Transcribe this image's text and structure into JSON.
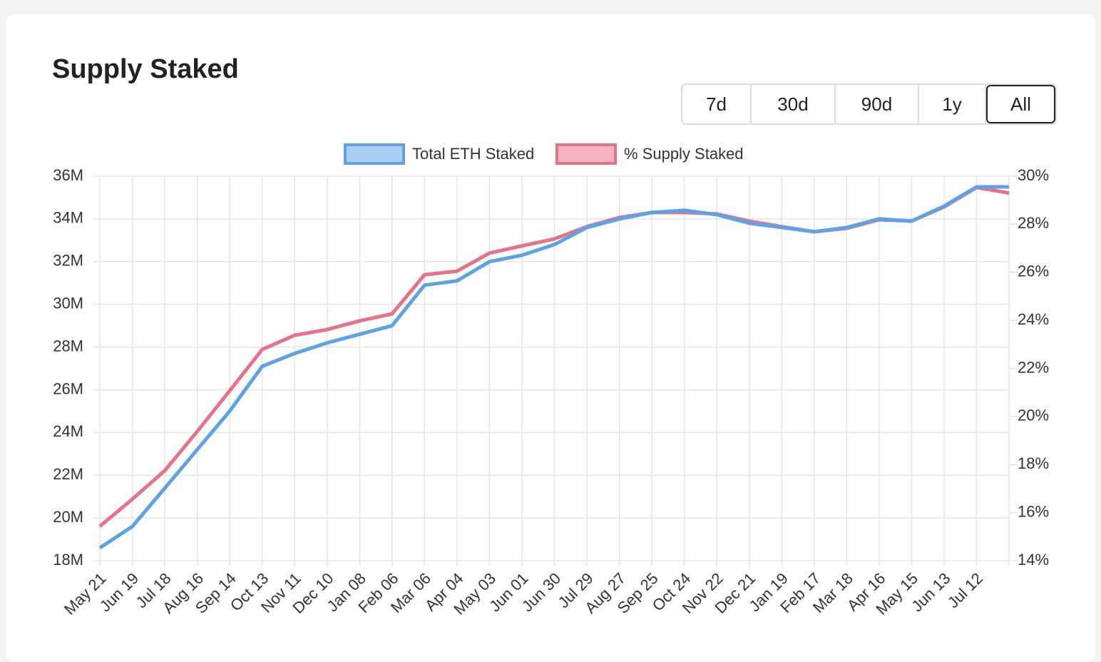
{
  "title": "Supply Staked",
  "buttons": [
    "7d",
    "30d",
    "90d",
    "1y",
    "All"
  ],
  "chart_data": {
    "type": "line",
    "categories": [
      "May 21",
      "Jun 19",
      "Jul 18",
      "Aug 16",
      "Sep 14",
      "Oct 13",
      "Nov 11",
      "Dec 10",
      "Jan 08",
      "Feb 06",
      "Mar 06",
      "Apr 04",
      "May 03",
      "Jun 01",
      "Jun 30",
      "Jul 29",
      "Aug 27",
      "Sep 25",
      "Oct 24",
      "Nov 22",
      "Dec 21",
      "Jan 19",
      "Feb 17",
      "Mar 18",
      "Apr 16",
      "May 15",
      "Jun 13",
      "Jul 12",
      null
    ],
    "series": [
      {
        "name": "Total ETH Staked",
        "color": "#5ba3e6",
        "fill": "#a9cff4",
        "axis": "y",
        "values": [
          18.6,
          19.6,
          21.4,
          23.2,
          25.0,
          27.1,
          27.7,
          28.2,
          28.6,
          29.0,
          30.9,
          31.1,
          32.0,
          32.3,
          32.8,
          33.6,
          34.0,
          34.3,
          34.4,
          34.2,
          33.8,
          33.6,
          33.4,
          33.6,
          34.0,
          33.9,
          34.6,
          35.5,
          35.5
        ]
      },
      {
        "name": "% Supply Staked",
        "color": "#e8718a",
        "fill": "#f7b6c3",
        "axis": "y2",
        "values": [
          15.43,
          16.56,
          17.75,
          19.38,
          21.07,
          22.79,
          23.38,
          23.62,
          23.98,
          24.27,
          25.9,
          26.05,
          26.8,
          27.1,
          27.39,
          27.9,
          28.28,
          28.49,
          28.49,
          28.43,
          28.13,
          27.9,
          27.69,
          27.83,
          28.19,
          28.13,
          28.72,
          29.53,
          29.3
        ]
      }
    ],
    "ylim": [
      18,
      36
    ],
    "yticks": [
      {
        "value": 18,
        "label": "18M"
      },
      {
        "value": 20,
        "label": "20M"
      },
      {
        "value": 22,
        "label": "22M"
      },
      {
        "value": 24,
        "label": "24M"
      },
      {
        "value": 26,
        "label": "26M"
      },
      {
        "value": 28,
        "label": "28M"
      },
      {
        "value": 30,
        "label": "30M"
      },
      {
        "value": 32,
        "label": "32M"
      },
      {
        "value": 34,
        "label": "34M"
      },
      {
        "value": 36,
        "label": "36M"
      }
    ],
    "y2lim": [
      14,
      30
    ],
    "y2ticks": [
      {
        "value": 14,
        "label": "14%"
      },
      {
        "value": 16,
        "label": "16%"
      },
      {
        "value": 18,
        "label": "18%"
      },
      {
        "value": 20,
        "label": "20%"
      },
      {
        "value": 22,
        "label": "22%"
      },
      {
        "value": 24,
        "label": "24%"
      },
      {
        "value": 26,
        "label": "26%"
      },
      {
        "value": 28,
        "label": "28%"
      },
      {
        "value": 30,
        "label": "30%"
      }
    ],
    "grid": true,
    "legend": "top"
  }
}
